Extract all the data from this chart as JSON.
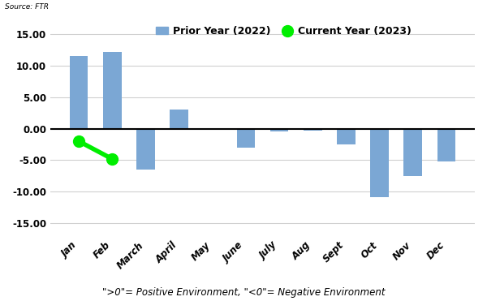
{
  "months": [
    "Jan",
    "Feb",
    "March",
    "April",
    "May",
    "June",
    "July",
    "Aug",
    "Sept",
    "Oct",
    "Nov",
    "Dec"
  ],
  "prior_year_values": [
    11.5,
    12.2,
    -6.5,
    3.0,
    -0.2,
    -3.0,
    -0.5,
    -0.3,
    -2.5,
    -10.8,
    -7.5,
    -5.2
  ],
  "current_year_values": [
    -2.0,
    -4.8,
    null,
    null,
    null,
    null,
    null,
    null,
    null,
    null,
    null,
    null
  ],
  "bar_color": "#7ba7d4",
  "line_color": "#00ee00",
  "dot_color": "#00ee00",
  "ylim": [
    -17,
    17
  ],
  "yticks": [
    -15.0,
    -10.0,
    -5.0,
    0.0,
    5.0,
    10.0,
    15.0
  ],
  "legend_prior": "Prior Year (2022)",
  "legend_current": "Current Year (2023)",
  "source_text": "Source: FTR",
  "footer_text": "\">0\"= Positive Environment, \"<0\"= Negative Environment",
  "background_color": "#ffffff",
  "grid_color": "#d0d0d0"
}
